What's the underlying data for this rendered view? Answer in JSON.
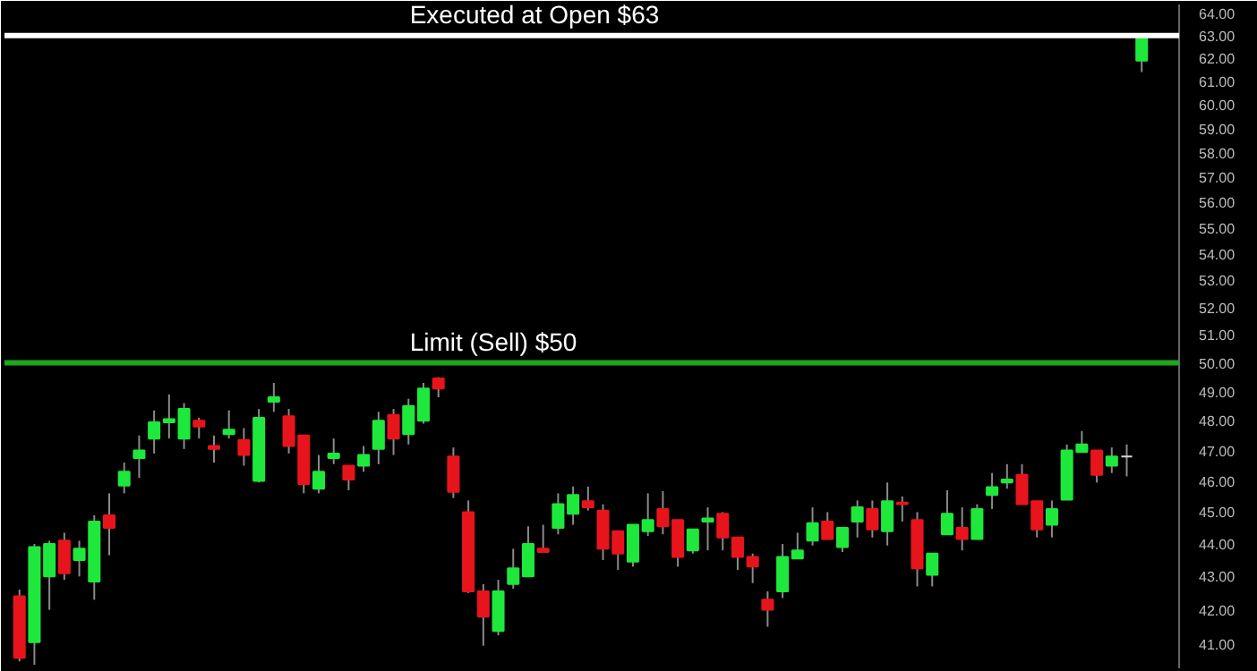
{
  "chart_data": {
    "type": "candlestick",
    "categories": [
      null,
      null,
      null,
      null,
      null,
      null,
      null,
      null,
      null,
      null,
      null,
      null,
      null,
      null,
      null,
      null,
      null,
      null,
      null,
      null,
      null,
      null,
      null,
      null,
      null,
      null,
      null,
      null,
      null,
      null,
      null,
      null,
      null,
      null,
      null,
      null,
      null,
      null,
      null,
      null,
      null,
      null,
      null,
      null,
      null,
      null,
      null,
      null,
      null,
      null,
      null,
      null,
      null,
      null,
      null,
      null,
      null,
      null,
      null,
      null,
      null,
      null,
      null,
      null,
      null,
      null,
      null,
      null,
      null,
      null,
      null,
      null,
      null,
      null,
      null,
      null
    ],
    "ohlc": [
      [
        42.4,
        42.6,
        40.5,
        40.6
      ],
      [
        41.05,
        44.0,
        40.4,
        43.9
      ],
      [
        43.0,
        44.1,
        42.0,
        44.0
      ],
      [
        44.1,
        44.35,
        42.9,
        43.1
      ],
      [
        43.5,
        44.1,
        43.0,
        43.85
      ],
      [
        42.85,
        44.9,
        42.3,
        44.7
      ],
      [
        44.9,
        45.6,
        43.65,
        44.5
      ],
      [
        45.85,
        46.6,
        45.6,
        46.3
      ],
      [
        46.75,
        47.5,
        46.1,
        47.0
      ],
      [
        47.4,
        48.35,
        46.9,
        47.95
      ],
      [
        47.95,
        48.9,
        47.4,
        48.05
      ],
      [
        47.4,
        48.6,
        47.05,
        48.4
      ],
      [
        48.0,
        48.1,
        47.4,
        47.8
      ],
      [
        47.15,
        47.5,
        46.6,
        47.05
      ],
      [
        47.55,
        48.35,
        47.4,
        47.7
      ],
      [
        47.35,
        47.75,
        46.5,
        46.85
      ],
      [
        46.0,
        48.4,
        45.95,
        48.1
      ],
      [
        48.65,
        49.3,
        48.3,
        48.8
      ],
      [
        48.15,
        48.4,
        46.9,
        47.15
      ],
      [
        47.5,
        47.5,
        45.6,
        45.9
      ],
      [
        45.75,
        46.85,
        45.6,
        46.3
      ],
      [
        46.75,
        47.4,
        46.55,
        46.9
      ],
      [
        46.5,
        46.5,
        45.7,
        46.05
      ],
      [
        46.5,
        47.15,
        46.3,
        46.85
      ],
      [
        47.05,
        48.3,
        46.55,
        48.0
      ],
      [
        48.2,
        48.4,
        46.85,
        47.4
      ],
      [
        47.55,
        48.75,
        47.2,
        48.5
      ],
      [
        48.0,
        49.3,
        47.9,
        49.1
      ],
      [
        49.45,
        49.5,
        48.8,
        49.1
      ],
      [
        46.8,
        47.1,
        45.45,
        45.65
      ],
      [
        45.0,
        45.37,
        42.5,
        42.55
      ],
      [
        42.55,
        42.77,
        40.95,
        41.8
      ],
      [
        41.38,
        42.9,
        41.25,
        42.55
      ],
      [
        42.77,
        43.85,
        42.63,
        43.25
      ],
      [
        43.0,
        44.55,
        43.0,
        44.0
      ],
      [
        43.85,
        44.6,
        43.75,
        43.75
      ],
      [
        44.5,
        45.6,
        44.3,
        45.25
      ],
      [
        44.95,
        45.82,
        44.6,
        45.55
      ],
      [
        45.35,
        45.82,
        45.05,
        45.15
      ],
      [
        45.05,
        45.25,
        43.5,
        43.85
      ],
      [
        44.4,
        44.4,
        43.2,
        43.7
      ],
      [
        43.45,
        44.6,
        43.3,
        44.6
      ],
      [
        44.4,
        45.6,
        44.25,
        44.75
      ],
      [
        45.1,
        45.67,
        44.3,
        44.55
      ],
      [
        44.75,
        44.75,
        43.3,
        43.6
      ],
      [
        43.8,
        44.45,
        43.7,
        44.45
      ],
      [
        44.7,
        45.15,
        43.8,
        44.8
      ],
      [
        44.95,
        45.0,
        43.8,
        44.2
      ],
      [
        44.2,
        44.2,
        43.2,
        43.6
      ],
      [
        43.6,
        43.7,
        42.8,
        43.3
      ],
      [
        42.3,
        42.55,
        41.5,
        42.0
      ],
      [
        42.55,
        44.0,
        42.35,
        43.6
      ],
      [
        43.55,
        44.35,
        43.55,
        43.8
      ],
      [
        44.1,
        45.15,
        43.95,
        44.65
      ],
      [
        44.7,
        45.0,
        44.15,
        44.15
      ],
      [
        43.9,
        44.5,
        43.75,
        44.5
      ],
      [
        44.7,
        45.37,
        44.2,
        45.15
      ],
      [
        45.1,
        45.37,
        44.2,
        44.45
      ],
      [
        44.4,
        45.95,
        43.95,
        45.35
      ],
      [
        45.3,
        45.5,
        44.7,
        45.25
      ],
      [
        44.75,
        45.0,
        42.7,
        43.25
      ],
      [
        43.05,
        43.7,
        42.7,
        43.7
      ],
      [
        44.3,
        45.7,
        44.3,
        44.95
      ],
      [
        44.5,
        45.15,
        43.8,
        44.15
      ],
      [
        44.15,
        45.25,
        44.15,
        45.1
      ],
      [
        45.55,
        46.26,
        45.1,
        45.8
      ],
      [
        45.95,
        46.55,
        45.75,
        46.05
      ],
      [
        46.2,
        46.55,
        45.25,
        45.25
      ],
      [
        45.35,
        45.35,
        44.2,
        44.45
      ],
      [
        44.6,
        45.37,
        44.2,
        45.1
      ],
      [
        45.4,
        47.2,
        45.4,
        47.0
      ],
      [
        46.95,
        47.65,
        46.95,
        47.2
      ],
      [
        47.0,
        47.0,
        45.95,
        46.2
      ],
      [
        46.5,
        47.1,
        46.26,
        46.8
      ],
      [
        46.8,
        47.2,
        46.15,
        46.8
      ],
      [
        61.9,
        63.0,
        61.4,
        63.0
      ]
    ],
    "colors": [
      "#e8141c",
      "#1ee83c",
      "#1ee83c",
      "#e8141c",
      "#1ee83c",
      "#1ee83c",
      "#e8141c",
      "#1ee83c",
      "#1ee83c",
      "#1ee83c",
      "#1ee83c",
      "#1ee83c",
      "#e8141c",
      "#e8141c",
      "#1ee83c",
      "#e8141c",
      "#1ee83c",
      "#1ee83c",
      "#e8141c",
      "#e8141c",
      "#1ee83c",
      "#1ee83c",
      "#e8141c",
      "#1ee83c",
      "#1ee83c",
      "#e8141c",
      "#1ee83c",
      "#1ee83c",
      "#e8141c",
      "#e8141c",
      "#e8141c",
      "#e8141c",
      "#1ee83c",
      "#1ee83c",
      "#1ee83c",
      "#e8141c",
      "#1ee83c",
      "#1ee83c",
      "#e8141c",
      "#e8141c",
      "#e8141c",
      "#1ee83c",
      "#1ee83c",
      "#e8141c",
      "#e8141c",
      "#1ee83c",
      "#1ee83c",
      "#e8141c",
      "#e8141c",
      "#e8141c",
      "#e8141c",
      "#1ee83c",
      "#1ee83c",
      "#1ee83c",
      "#e8141c",
      "#1ee83c",
      "#1ee83c",
      "#e8141c",
      "#1ee83c",
      "#e8141c",
      "#e8141c",
      "#1ee83c",
      "#1ee83c",
      "#e8141c",
      "#1ee83c",
      "#1ee83c",
      "#1ee83c",
      "#e8141c",
      "#e8141c",
      "#1ee83c",
      "#1ee83c",
      "#1ee83c",
      "#e8141c",
      "#1ee83c",
      "#d8d8d8",
      "#1ee83c"
    ],
    "log": true,
    "ylim": [
      40.3,
      64.4
    ],
    "yticks": [
      {
        "value": 41,
        "label": "41.00"
      },
      {
        "value": 42,
        "label": "42.00"
      },
      {
        "value": 43,
        "label": "43.00"
      },
      {
        "value": 44,
        "label": "44.00"
      },
      {
        "value": 45,
        "label": "45.00"
      },
      {
        "value": 46,
        "label": "46.00"
      },
      {
        "value": 47,
        "label": "47.00"
      },
      {
        "value": 48,
        "label": "48.00"
      },
      {
        "value": 49,
        "label": "49.00"
      },
      {
        "value": 50,
        "label": "50.00"
      },
      {
        "value": 51,
        "label": "51.00"
      },
      {
        "value": 52,
        "label": "52.00"
      },
      {
        "value": 53,
        "label": "53.00"
      },
      {
        "value": 54,
        "label": "54.00"
      },
      {
        "value": 55,
        "label": "55.00"
      },
      {
        "value": 56,
        "label": "56.00"
      },
      {
        "value": 57,
        "label": "57.00"
      },
      {
        "value": 58,
        "label": "58.00"
      },
      {
        "value": 59,
        "label": "59.00"
      },
      {
        "value": 60,
        "label": "60.00"
      },
      {
        "value": 61,
        "label": "61.00"
      },
      {
        "value": 62,
        "label": "62.00"
      },
      {
        "value": 63,
        "label": "63.00"
      },
      {
        "value": 64,
        "label": "64.00"
      }
    ],
    "grid": false,
    "ref_lines": [
      {
        "axis": "y",
        "value": 63,
        "label": "Executed at Open $63",
        "color": "#ffffff"
      },
      {
        "axis": "y",
        "value": 50,
        "label": "Limit (Sell) $50",
        "color": "#1fa51f"
      }
    ]
  }
}
